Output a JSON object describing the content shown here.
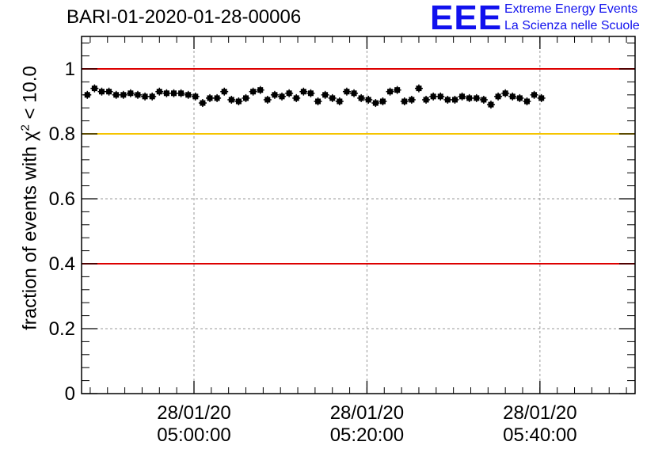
{
  "header": {
    "title": "BARI-01-2020-01-28-00006",
    "logo_mark": "EEE",
    "logo_line1": "Extreme Energy Events",
    "logo_line2": "La Scienza nelle Scuole"
  },
  "colors": {
    "red_line": "#dd0000",
    "yellow_line": "#f5c400",
    "marker": "#000000",
    "grid": "#999999",
    "brand": "#1111ee"
  },
  "chart_data": {
    "type": "scatter",
    "title": "",
    "ylabel_prefix": "fraction of events with ",
    "ylabel_symbol": "χ",
    "ylabel_sup": "2",
    "ylabel_suffix": " < 10.0",
    "xlabel": "",
    "xlim": [
      "04:47:00",
      "05:51:00"
    ],
    "ylim": [
      0,
      1.1
    ],
    "yticks": [
      0,
      0.2,
      0.4,
      0.6,
      0.8,
      1
    ],
    "ytick_labels": [
      "0",
      "0.2",
      "0.4",
      "0.6",
      "0.8",
      "1"
    ],
    "xticks": [
      {
        "time": "05:00:00",
        "label_date": "28/01/20",
        "label_time": "05:00:00"
      },
      {
        "time": "05:20:00",
        "label_date": "28/01/20",
        "label_time": "05:20:00"
      },
      {
        "time": "05:40:00",
        "label_date": "28/01/20",
        "label_time": "05:40:00"
      }
    ],
    "grid": true,
    "reference_lines": [
      {
        "y": 1.0,
        "color": "red"
      },
      {
        "y": 0.8,
        "color": "yellow"
      },
      {
        "y": 0.4,
        "color": "red"
      }
    ],
    "points": {
      "x_start": "04:47:40",
      "x_step_seconds": 50,
      "y": [
        0.92,
        0.94,
        0.93,
        0.93,
        0.92,
        0.92,
        0.925,
        0.92,
        0.915,
        0.915,
        0.93,
        0.925,
        0.925,
        0.925,
        0.92,
        0.915,
        0.895,
        0.91,
        0.91,
        0.93,
        0.905,
        0.9,
        0.91,
        0.93,
        0.935,
        0.905,
        0.92,
        0.915,
        0.925,
        0.91,
        0.93,
        0.925,
        0.9,
        0.92,
        0.91,
        0.9,
        0.93,
        0.925,
        0.91,
        0.905,
        0.895,
        0.9,
        0.93,
        0.935,
        0.9,
        0.905,
        0.94,
        0.905,
        0.915,
        0.915,
        0.905,
        0.905,
        0.915,
        0.91,
        0.91,
        0.905,
        0.89,
        0.915,
        0.925,
        0.915,
        0.91,
        0.9,
        0.92,
        0.91
      ]
    }
  }
}
